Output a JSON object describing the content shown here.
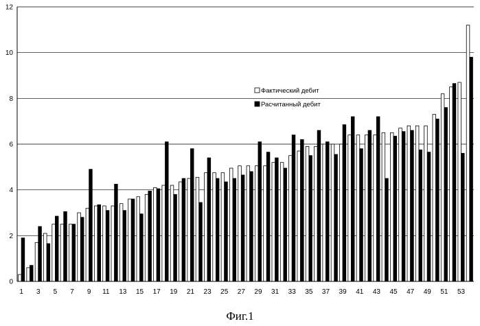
{
  "chart_data": {
    "type": "bar",
    "title": "",
    "xlabel": "",
    "ylabel": "",
    "ylim": [
      0,
      12
    ],
    "yticks": [
      0,
      2,
      4,
      6,
      8,
      10,
      12
    ],
    "grid": true,
    "legend_position": "top-center",
    "x_tick_labels": [
      "1",
      "3",
      "5",
      "7",
      "9",
      "11",
      "13",
      "15",
      "17",
      "19",
      "21",
      "23",
      "25",
      "27",
      "29",
      "31",
      "33",
      "35",
      "37",
      "39",
      "41",
      "43",
      "45",
      "47",
      "49",
      "51",
      "53"
    ],
    "categories": [
      "1",
      "2",
      "3",
      "4",
      "5",
      "6",
      "7",
      "8",
      "9",
      "10",
      "11",
      "12",
      "13",
      "14",
      "15",
      "16",
      "17",
      "18",
      "19",
      "20",
      "21",
      "22",
      "23",
      "24",
      "25",
      "26",
      "27",
      "28",
      "29",
      "30",
      "31",
      "32",
      "33",
      "34",
      "35",
      "36",
      "37",
      "38",
      "39",
      "40",
      "41",
      "42",
      "43",
      "44",
      "45",
      "46",
      "47",
      "48",
      "49",
      "50",
      "51",
      "52",
      "53",
      "54"
    ],
    "series": [
      {
        "name": "Фактический дебит",
        "color": "#ffffff",
        "values": [
          0.3,
          0.6,
          1.7,
          2.1,
          2.5,
          2.5,
          2.5,
          3.0,
          3.2,
          3.3,
          3.3,
          3.3,
          3.4,
          3.6,
          3.7,
          3.8,
          4.1,
          4.2,
          4.2,
          4.35,
          4.5,
          4.55,
          4.75,
          4.75,
          4.75,
          4.95,
          5.05,
          5.05,
          5.05,
          5.05,
          5.2,
          5.2,
          5.5,
          5.7,
          5.9,
          5.9,
          6.0,
          6.0,
          6.0,
          6.4,
          6.4,
          6.4,
          6.4,
          6.5,
          6.5,
          6.7,
          6.8,
          6.8,
          6.8,
          7.3,
          8.2,
          8.5,
          8.7,
          11.2
        ]
      },
      {
        "name": "Расчитанный дебит",
        "color": "#000000",
        "values": [
          1.9,
          0.7,
          2.4,
          1.65,
          2.85,
          3.05,
          2.5,
          2.8,
          4.9,
          3.35,
          3.1,
          4.25,
          3.1,
          3.6,
          2.95,
          3.95,
          4.05,
          6.1,
          3.8,
          4.5,
          5.8,
          3.45,
          5.4,
          4.5,
          4.35,
          4.5,
          4.65,
          4.8,
          6.1,
          5.65,
          5.4,
          4.95,
          6.4,
          6.2,
          5.5,
          6.6,
          6.1,
          5.55,
          6.85,
          7.2,
          5.8,
          6.6,
          7.2,
          4.5,
          6.35,
          6.55,
          6.6,
          5.75,
          5.65,
          7.1,
          7.6,
          8.65,
          5.6,
          9.8
        ]
      }
    ]
  },
  "caption": "Фиг.1"
}
